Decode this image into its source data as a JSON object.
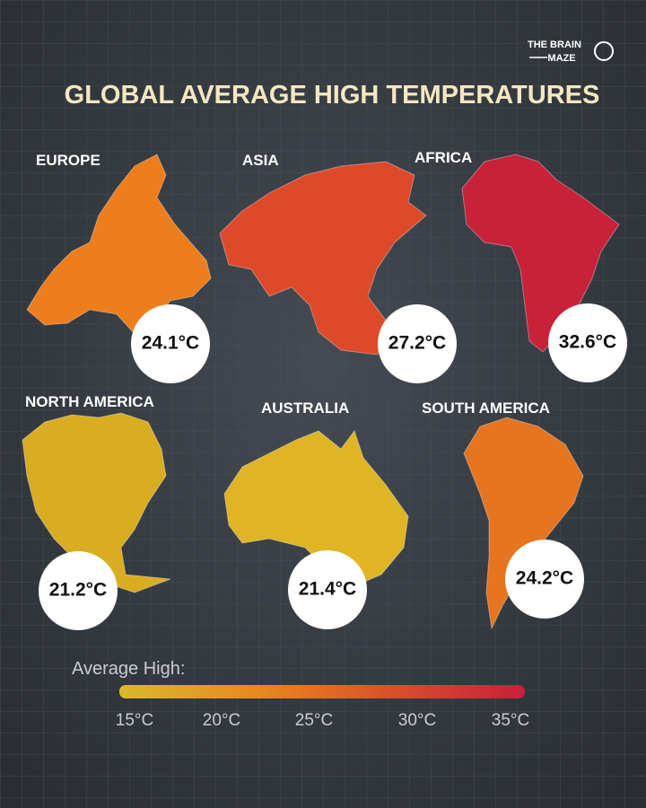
{
  "brand": {
    "line1": "THE BRAIN",
    "line2": "MAZE"
  },
  "header": {
    "title": "GLOBAL AVERAGE HIGH TEMPERATURES"
  },
  "regions": [
    {
      "name": "EUROPE",
      "temperature": "24.1°C",
      "color": "#ee7d1c"
    },
    {
      "name": "ASIA",
      "temperature": "27.2°C",
      "color": "#dd4a2a"
    },
    {
      "name": "AFRICA",
      "temperature": "32.6°C",
      "color": "#c8213a"
    },
    {
      "name": "NORTH AMERICA",
      "temperature": "21.2°C",
      "color": "#d9ad22"
    },
    {
      "name": "AUSTRALIA",
      "temperature": "21.4°C",
      "color": "#dfb526"
    },
    {
      "name": "SOUTH AMERICA",
      "temperature": "24.2°C",
      "color": "#e5751f"
    }
  ],
  "legend": {
    "title": "Average High:",
    "colors": [
      "#d8b92a",
      "#e98a1e",
      "#dc4f2a",
      "#c81f3a"
    ],
    "ticks": [
      "15°C",
      "20°C",
      "25°C",
      "30°C",
      "35°C"
    ]
  }
}
